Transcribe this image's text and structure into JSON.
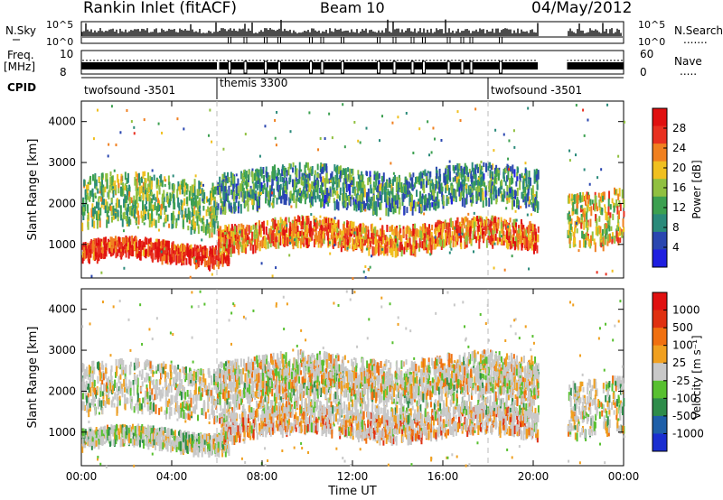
{
  "header": {
    "station": "Rankin Inlet (fitACF)",
    "beam": "Beam 10",
    "date": "04/May/2012"
  },
  "noise_panel": {
    "left_label": "N.Sky",
    "right_label": "N.Search",
    "ticks_left": [
      "10^5",
      "10^0"
    ],
    "ticks_right": [
      "10^5",
      "10^0"
    ]
  },
  "freq_panel": {
    "left_label_1": "Freq.",
    "left_label_2": "[MHz]",
    "right_label": "Nave",
    "ticks_left": [
      "10",
      "8"
    ],
    "ticks_right": [
      "60",
      "0"
    ]
  },
  "cpid": {
    "label": "CPID",
    "segments": [
      {
        "name": "twofsound -3501",
        "start_h": 0,
        "end_h": 6
      },
      {
        "name": "themis 3300",
        "start_h": 6,
        "end_h": 18
      },
      {
        "name": "twofsound -3501",
        "start_h": 18,
        "end_h": 24
      }
    ]
  },
  "x_axis": {
    "label": "Time UT",
    "ticks": [
      "00:00",
      "04:00",
      "08:00",
      "12:00",
      "16:00",
      "20:00",
      "00:00"
    ]
  },
  "power_panel": {
    "ylabel": "Slant Range [km]",
    "yticks": [
      "4000",
      "3000",
      "2000",
      "1000"
    ],
    "colorbar_label": "Power [dB]",
    "colorbar_ticks": [
      "28",
      "24",
      "20",
      "16",
      "12",
      "8",
      "4"
    ],
    "colors": [
      "#1f1fe0",
      "#2a46b0",
      "#2a8a7a",
      "#3ca050",
      "#90c040",
      "#f0c020",
      "#f08020",
      "#e83020",
      "#e01010"
    ]
  },
  "velocity_panel": {
    "ylabel": "Slant Range [km]",
    "yticks": [
      "4000",
      "3000",
      "2000",
      "1000"
    ],
    "colorbar_label": "Velocity [m s⁻¹]",
    "colorbar_ticks": [
      "1000",
      "500",
      "100",
      "25",
      "-25",
      "-100",
      "-500",
      "-1000"
    ],
    "colors": [
      "#1a2ed0",
      "#1e5fa8",
      "#2e8c4a",
      "#58c030",
      "#c8c8c8",
      "#f0a020",
      "#f07010",
      "#e03010",
      "#e01010"
    ]
  },
  "chart_data": [
    {
      "type": "heatmap",
      "title": "Rankin Inlet (fitACF)  Beam 10  04/May/2012",
      "xlabel": "Time UT",
      "ylabel": "Slant Range [km]",
      "xlim_hours": [
        0,
        24
      ],
      "ylim_km": [
        180,
        4500
      ],
      "colorbar": "Power [dB]",
      "clim": [
        0,
        30
      ],
      "data_gap_hours": [
        20.2,
        21.5
      ],
      "scatter_bands": [
        {
          "range_km": [
            700,
            1100
          ],
          "time_h": [
            0,
            6.5
          ],
          "typical_value": 26
        },
        {
          "range_km": [
            1000,
            1600
          ],
          "time_h": [
            6,
            20.2
          ],
          "typical_value": 22
        },
        {
          "range_km": [
            1500,
            2700
          ],
          "time_h": [
            0,
            6
          ],
          "typical_value": 14
        },
        {
          "range_km": [
            2000,
            2900
          ],
          "time_h": [
            6,
            20.2
          ],
          "typical_value": 10
        },
        {
          "range_km": [
            1100,
            2400
          ],
          "time_h": [
            21.5,
            24
          ],
          "typical_value": 18
        }
      ]
    },
    {
      "type": "heatmap",
      "title": "Rankin Inlet (fitACF)  Beam 10  04/May/2012",
      "xlabel": "Time UT",
      "ylabel": "Slant Range [km]",
      "xlim_hours": [
        0,
        24
      ],
      "ylim_km": [
        180,
        4500
      ],
      "colorbar": "Velocity [m s⁻¹]",
      "clim": [
        -1000,
        1000
      ],
      "data_gap_hours": [
        20.2,
        21.5
      ],
      "scatter_bands": [
        {
          "range_km": [
            700,
            1100
          ],
          "time_h": [
            0,
            6.5
          ],
          "typical_value": -100
        },
        {
          "range_km": [
            1000,
            1600
          ],
          "time_h": [
            6,
            20.2
          ],
          "typical_value": 300
        },
        {
          "range_km": [
            1500,
            2700
          ],
          "time_h": [
            0,
            20.2
          ],
          "typical_value": 0
        },
        {
          "range_km": [
            2000,
            2900
          ],
          "time_h": [
            6,
            20.2
          ],
          "typical_value": 100
        },
        {
          "range_km": [
            1100,
            2400
          ],
          "time_h": [
            21.5,
            24
          ],
          "typical_value": 0
        }
      ]
    }
  ]
}
